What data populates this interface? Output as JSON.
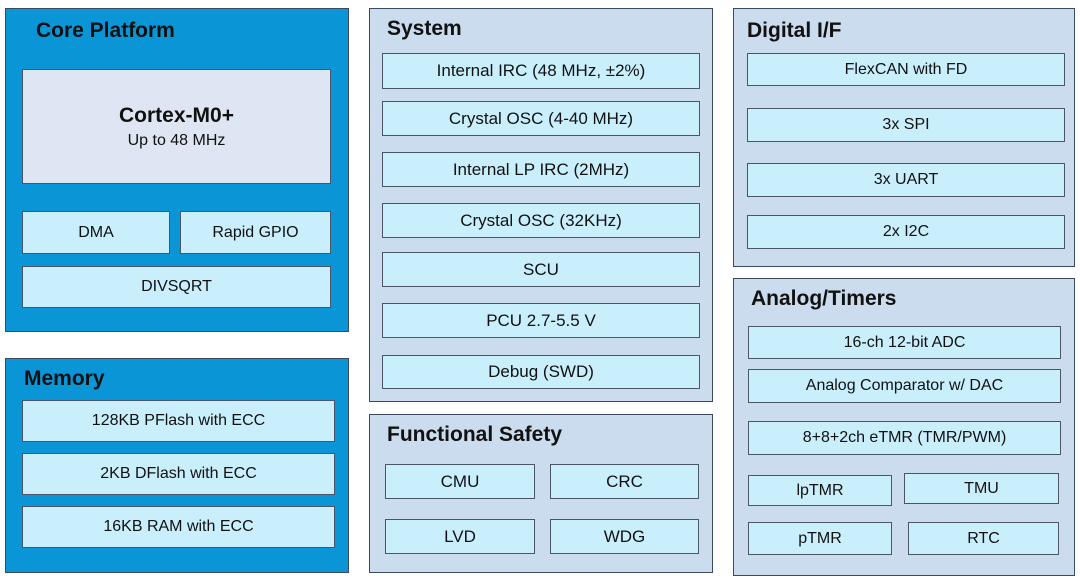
{
  "core_platform": {
    "title": "Core Platform",
    "cpu_name": "Cortex-M0+",
    "cpu_freq": "Up to 48 MHz",
    "dma": "DMA",
    "rapid_gpio": "Rapid GPIO",
    "divsqrt": "DIVSQRT"
  },
  "memory": {
    "title": "Memory",
    "items": [
      "128KB PFlash with ECC",
      "2KB DFlash with ECC",
      "16KB RAM with ECC"
    ]
  },
  "system": {
    "title": "System",
    "items": [
      "Internal IRC (48 MHz, ±2%)",
      "Crystal OSC (4-40 MHz)",
      "Internal LP IRC (2MHz)",
      "Crystal OSC (32KHz)",
      "SCU",
      "PCU 2.7-5.5 V",
      "Debug (SWD)"
    ]
  },
  "functional_safety": {
    "title": "Functional Safety",
    "items": [
      "CMU",
      "CRC",
      "LVD",
      "WDG"
    ]
  },
  "digital_if": {
    "title": "Digital I/F",
    "items": [
      "FlexCAN with FD",
      "3x SPI",
      "3x UART",
      "2x I2C"
    ]
  },
  "analog_timers": {
    "title": "Analog/Timers",
    "adc": "16-ch 12-bit ADC",
    "comparator": "Analog Comparator w/ DAC",
    "etmr": "8+8+2ch eTMR (TMR/PWM)",
    "lptmr": "lpTMR",
    "tmu": "TMU",
    "ptmr": "pTMR",
    "rtc": "RTC"
  },
  "colors": {
    "core_panel": "#0a96d6",
    "grey_panel": "#cbdcee",
    "block": "#c9eefc",
    "cpu_block": "#dde6f2"
  }
}
